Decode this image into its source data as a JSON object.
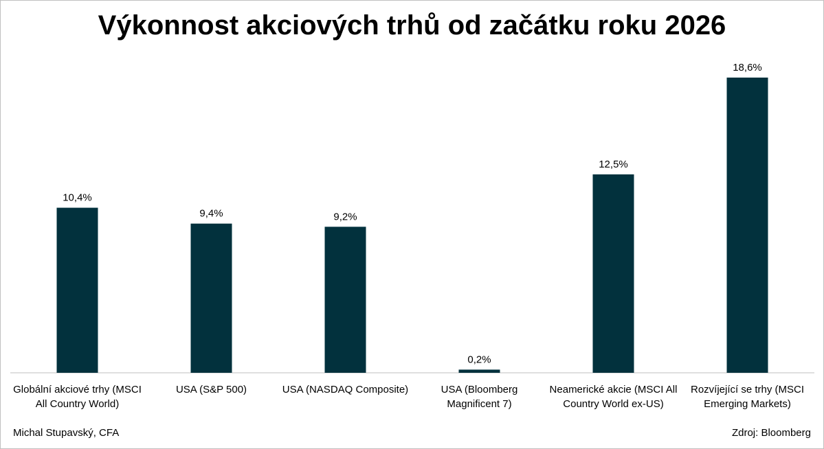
{
  "chart_data": {
    "type": "bar",
    "title": "Výkonnost akciových trhů od začátku roku 2026",
    "categories": [
      "Globální akciové trhy (MSCI All Country World)",
      "USA (S&P 500)",
      "USA (NASDAQ Composite)",
      "USA (Bloomberg Magnificent 7)",
      "Neamerické akcie (MSCI All Country World ex-US)",
      "Rozvíjející se trhy (MSCI Emerging Markets)"
    ],
    "values": [
      10.4,
      9.4,
      9.2,
      0.2,
      12.5,
      18.6
    ],
    "value_labels": [
      "10,4%",
      "9,4%",
      "9,2%",
      "0,2%",
      "12,5%",
      "18,6%"
    ],
    "color": "#02313d",
    "author": "Michal Stupavský, CFA",
    "source": "Zdroj: Bloomberg"
  }
}
